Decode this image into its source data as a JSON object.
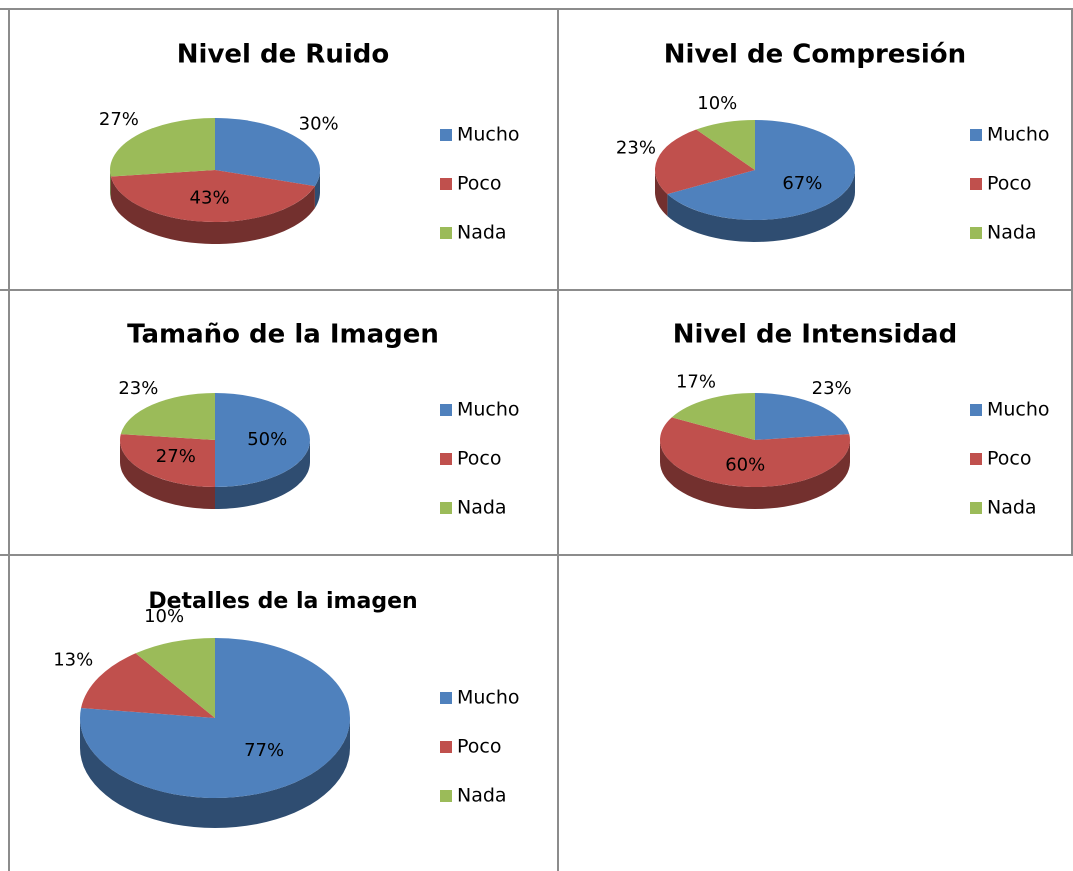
{
  "chart_data": [
    {
      "type": "pie",
      "title": "Nivel de Ruido",
      "categories": [
        "Mucho",
        "Poco",
        "Nada"
      ],
      "values": [
        30,
        43,
        27
      ],
      "value_labels": [
        "30%",
        "43%",
        "27%"
      ],
      "colors": [
        "#4f81bd",
        "#c0504d",
        "#9bbb59"
      ]
    },
    {
      "type": "pie",
      "title": "Nivel de Compresión",
      "categories": [
        "Mucho",
        "Poco",
        "Nada"
      ],
      "values": [
        67,
        23,
        10
      ],
      "value_labels": [
        "67%",
        "23%",
        "10%"
      ],
      "colors": [
        "#4f81bd",
        "#c0504d",
        "#9bbb59"
      ]
    },
    {
      "type": "pie",
      "title": "Tamaño de la Imagen",
      "categories": [
        "Mucho",
        "Poco",
        "Nada"
      ],
      "values": [
        50,
        27,
        23
      ],
      "value_labels": [
        "50%",
        "27%",
        "23%"
      ],
      "colors": [
        "#4f81bd",
        "#c0504d",
        "#9bbb59"
      ]
    },
    {
      "type": "pie",
      "title": "Nivel de Intensidad",
      "categories": [
        "Mucho",
        "Poco",
        "Nada"
      ],
      "values": [
        23,
        60,
        17
      ],
      "value_labels": [
        "23%",
        "60%",
        "17%"
      ],
      "colors": [
        "#4f81bd",
        "#c0504d",
        "#9bbb59"
      ]
    },
    {
      "type": "pie",
      "title": "Detalles de la imagen",
      "categories": [
        "Mucho",
        "Poco",
        "Nada"
      ],
      "values": [
        77,
        13,
        10
      ],
      "value_labels": [
        "77%",
        "13%",
        "10%"
      ],
      "colors": [
        "#4f81bd",
        "#c0504d",
        "#9bbb59"
      ]
    }
  ]
}
